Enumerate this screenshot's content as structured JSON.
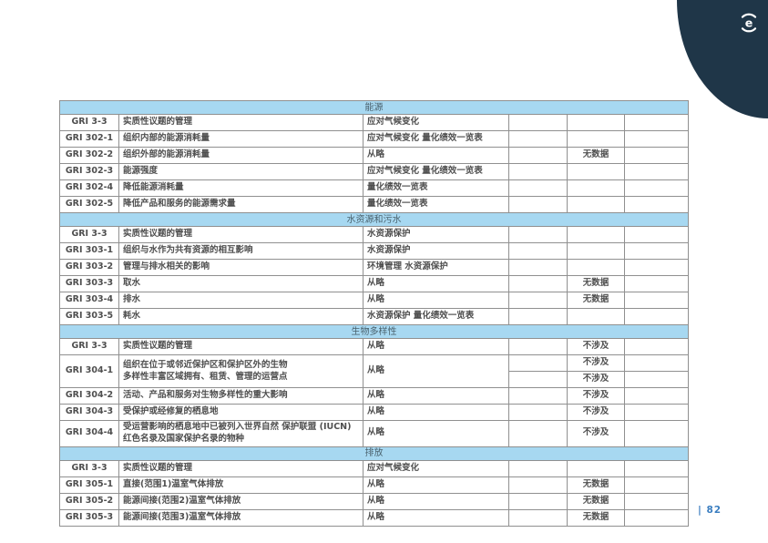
{
  "theme": {
    "section_band_color": "#a7d8f1",
    "section_text_color": "#4a626e",
    "cell_text_color": "#4f4f4f",
    "border_color": "#909090",
    "corner_color": "#1f3648",
    "page_number_color": "#3b7ec0"
  },
  "logo": {
    "letter": "e"
  },
  "footer": {
    "text": "| 82"
  },
  "table": {
    "sections": [
      {
        "title": "能源",
        "rows": [
          {
            "code": "GRI 3-3",
            "title": "实质性议题的管理",
            "location": "应对气候变化",
            "col4": "",
            "omission": "",
            "col6": ""
          },
          {
            "code": "GRI 302-1",
            "title": "组织内部的能源消耗量",
            "location": "应对气候变化 量化绩效一览表",
            "col4": "",
            "omission": "",
            "col6": ""
          },
          {
            "code": "GRI 302-2",
            "title": "组织外部的能源消耗量",
            "location": "从略",
            "col4": "",
            "omission": "无数据",
            "col6": ""
          },
          {
            "code": "GRI 302-3",
            "title": "能源强度",
            "location": "应对气候变化 量化绩效一览表",
            "col4": "",
            "omission": "",
            "col6": ""
          },
          {
            "code": "GRI 302-4",
            "title": "降低能源消耗量",
            "location": "量化绩效一览表",
            "col4": "",
            "omission": "",
            "col6": ""
          },
          {
            "code": "GRI 302-5",
            "title": "降低产品和服务的能源需求量",
            "location": "量化绩效一览表",
            "col4": "",
            "omission": "",
            "col6": ""
          }
        ]
      },
      {
        "title": "水资源和污水",
        "rows": [
          {
            "code": "GRI 3-3",
            "title": "实质性议题的管理",
            "location": "水资源保护",
            "col4": "",
            "omission": "",
            "col6": ""
          },
          {
            "code": "GRI 303-1",
            "title": "组织与水作为共有资源的相互影响",
            "location": "水资源保护",
            "col4": "",
            "omission": "",
            "col6": ""
          },
          {
            "code": "GRI 303-2",
            "title": "管理与排水相关的影响",
            "location": "环境管理 水资源保护",
            "col4": "",
            "omission": "",
            "col6": ""
          },
          {
            "code": "GRI 303-3",
            "title": "取水",
            "location": "从略",
            "col4": "",
            "omission": "无数据",
            "col6": ""
          },
          {
            "code": "GRI 303-4",
            "title": "排水",
            "location": "从略",
            "col4": "",
            "omission": "无数据",
            "col6": ""
          },
          {
            "code": "GRI 303-5",
            "title": "耗水",
            "location": "水资源保护 量化绩效一览表",
            "col4": "",
            "omission": "",
            "col6": ""
          }
        ]
      },
      {
        "title": "生物多样性",
        "rows": [
          {
            "code": "GRI 3-3",
            "title": "实质性议题的管理",
            "location": "从略",
            "col4": "",
            "omission": "不涉及",
            "col6": ""
          },
          {
            "code": "GRI 304-1",
            "title": "组织在位于或邻近保护区和保护区外的生物\n多样性丰富区域拥有、租赁、管理的运营点",
            "location": "从略",
            "right_rows": [
              {
                "col4": "",
                "omission": "不涉及",
                "col6": ""
              },
              {
                "col4": "",
                "omission": "不涉及",
                "col6": ""
              }
            ]
          },
          {
            "code": "GRI 304-2",
            "title": "活动、产品和服务对生物多样性的重大影响",
            "location": "从略",
            "col4": "",
            "omission": "不涉及",
            "col6": ""
          },
          {
            "code": "GRI 304-3",
            "title": "受保护或经修复的栖息地",
            "location": "从略",
            "col4": "",
            "omission": "不涉及",
            "col6": ""
          },
          {
            "code": "GRI 304-4",
            "title": "受运营影响的栖息地中已被列入世界自然 保护联盟 (IUCN)\n红色名录及国家保护名录的物种",
            "location": "从略",
            "col4": "",
            "omission": "不涉及",
            "col6": ""
          }
        ]
      },
      {
        "title": "排放",
        "rows": [
          {
            "code": "GRI 3-3",
            "title": "实质性议题的管理",
            "location": "应对气候变化",
            "col4": "",
            "omission": "",
            "col6": ""
          },
          {
            "code": "GRI 305-1",
            "title": "直接(范围1)温室气体排放",
            "location": "从略",
            "col4": "",
            "omission": "无数据",
            "col6": ""
          },
          {
            "code": "GRI 305-2",
            "title": "能源间接(范围2)温室气体排放",
            "location": "从略",
            "col4": "",
            "omission": "无数据",
            "col6": ""
          },
          {
            "code": "GRI 305-3",
            "title": "能源间接(范围3)温室气体排放",
            "location": "从略",
            "col4": "",
            "omission": "无数据",
            "col6": ""
          }
        ]
      }
    ]
  }
}
